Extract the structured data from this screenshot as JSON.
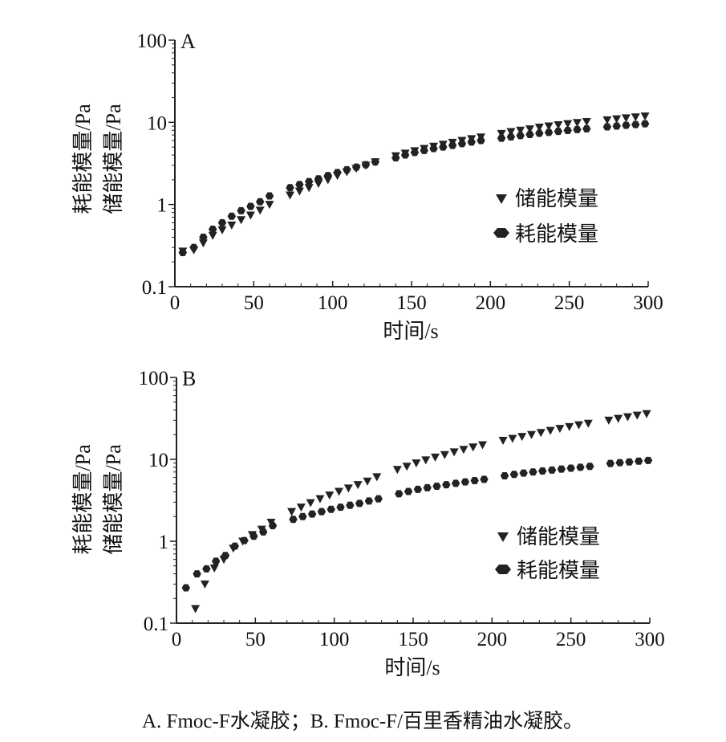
{
  "caption": "A. Fmoc-F水凝胶；B. Fmoc-F/百里香精油水凝胶。",
  "chart_data": [
    {
      "type": "scatter",
      "panel_label": "A",
      "xlabel": "时间/s",
      "ylabel_lines": [
        "耗能模量/Pa",
        "储能模量/Pa"
      ],
      "xlim": [
        0,
        300
      ],
      "ylim": [
        0.1,
        100
      ],
      "y_scale": "log",
      "x_ticks": [
        0,
        50,
        100,
        150,
        200,
        250,
        300
      ],
      "y_ticks": [
        0.1,
        1,
        10,
        100
      ],
      "y_tick_labels": [
        "0.1",
        "1",
        "10",
        "100"
      ],
      "legend_position": "center-right",
      "series": [
        {
          "name": "储能模量",
          "marker": "triangle-down",
          "x": [
            5,
            12,
            18,
            24,
            30,
            36,
            42,
            48,
            54,
            60,
            73,
            79,
            85,
            91,
            97,
            103,
            109,
            115,
            121,
            127,
            140,
            146,
            152,
            158,
            164,
            170,
            176,
            182,
            188,
            194,
            207,
            213,
            219,
            225,
            231,
            237,
            243,
            249,
            255,
            261,
            274,
            280,
            286,
            292,
            298
          ],
          "values": [
            0.27,
            0.28,
            0.34,
            0.42,
            0.49,
            0.56,
            0.65,
            0.74,
            0.85,
            1.0,
            1.3,
            1.45,
            1.6,
            1.8,
            2.0,
            2.25,
            2.5,
            2.75,
            3.0,
            3.3,
            3.9,
            4.2,
            4.5,
            4.8,
            5.1,
            5.4,
            5.7,
            6.0,
            6.3,
            6.6,
            7.3,
            7.7,
            8.0,
            8.3,
            8.7,
            9.0,
            9.3,
            9.6,
            9.9,
            10.2,
            10.7,
            11.0,
            11.3,
            11.6,
            11.9
          ]
        },
        {
          "name": "耗能模量",
          "marker": "hexagon",
          "x": [
            5,
            12,
            18,
            24,
            30,
            36,
            42,
            48,
            54,
            60,
            73,
            79,
            85,
            91,
            97,
            103,
            109,
            115,
            121,
            127,
            140,
            146,
            152,
            158,
            164,
            170,
            176,
            182,
            188,
            194,
            207,
            213,
            219,
            225,
            231,
            237,
            243,
            249,
            255,
            261,
            274,
            280,
            286,
            292,
            298
          ],
          "values": [
            0.26,
            0.3,
            0.4,
            0.5,
            0.6,
            0.72,
            0.84,
            0.95,
            1.08,
            1.27,
            1.6,
            1.75,
            1.9,
            2.05,
            2.25,
            2.45,
            2.65,
            2.85,
            3.05,
            3.3,
            3.7,
            4.0,
            4.3,
            4.55,
            4.8,
            5.0,
            5.25,
            5.5,
            5.75,
            6.0,
            6.4,
            6.65,
            6.9,
            7.1,
            7.35,
            7.55,
            7.75,
            7.95,
            8.15,
            8.35,
            8.8,
            9.0,
            9.2,
            9.4,
            9.6
          ]
        }
      ]
    },
    {
      "type": "scatter",
      "panel_label": "B",
      "xlabel": "时间/s",
      "ylabel_lines": [
        "耗能模量/Pa",
        "储能模量/Pa"
      ],
      "xlim": [
        0,
        300
      ],
      "ylim": [
        0.1,
        100
      ],
      "y_scale": "log",
      "x_ticks": [
        0,
        50,
        100,
        150,
        200,
        250,
        300
      ],
      "y_ticks": [
        0.1,
        1,
        10,
        100
      ],
      "y_tick_labels": [
        "0.1",
        "1",
        "10",
        "100"
      ],
      "legend_position": "center-right",
      "series": [
        {
          "name": "储能模量",
          "marker": "triangle-down",
          "x": [
            12,
            18,
            24,
            30,
            36,
            42,
            48,
            54,
            60,
            73,
            79,
            85,
            91,
            97,
            103,
            109,
            115,
            121,
            127,
            140,
            146,
            152,
            158,
            164,
            170,
            176,
            182,
            188,
            194,
            207,
            213,
            219,
            225,
            231,
            237,
            243,
            249,
            255,
            261,
            274,
            280,
            286,
            292,
            298
          ],
          "values": [
            0.15,
            0.3,
            0.47,
            0.6,
            0.82,
            1.0,
            1.2,
            1.4,
            1.7,
            2.3,
            2.6,
            2.95,
            3.3,
            3.65,
            4.05,
            4.45,
            4.9,
            5.4,
            6.1,
            7.5,
            8.2,
            9.0,
            9.8,
            10.6,
            11.4,
            12.3,
            13.2,
            14.1,
            15.0,
            17.0,
            18.0,
            19.0,
            20.0,
            21.2,
            22.5,
            23.8,
            25.0,
            26.3,
            27.5,
            30.0,
            31.5,
            33.0,
            34.5,
            36.0
          ]
        },
        {
          "name": "耗能模量",
          "marker": "hexagon",
          "x": [
            6,
            13,
            19,
            25,
            31,
            37,
            43,
            49,
            55,
            61,
            74,
            80,
            86,
            92,
            98,
            104,
            110,
            116,
            122,
            128,
            141,
            147,
            153,
            159,
            165,
            171,
            177,
            183,
            189,
            195,
            208,
            214,
            220,
            226,
            232,
            238,
            244,
            250,
            256,
            262,
            275,
            281,
            287,
            293,
            299
          ],
          "values": [
            0.27,
            0.4,
            0.46,
            0.57,
            0.67,
            0.87,
            1.02,
            1.15,
            1.3,
            1.55,
            1.85,
            2.0,
            2.15,
            2.3,
            2.45,
            2.6,
            2.75,
            2.9,
            3.1,
            3.3,
            3.8,
            4.05,
            4.3,
            4.5,
            4.7,
            4.9,
            5.1,
            5.3,
            5.5,
            5.7,
            6.3,
            6.55,
            6.8,
            7.0,
            7.2,
            7.4,
            7.6,
            7.8,
            8.0,
            8.2,
            8.9,
            9.1,
            9.3,
            9.5,
            9.7
          ]
        }
      ]
    }
  ]
}
